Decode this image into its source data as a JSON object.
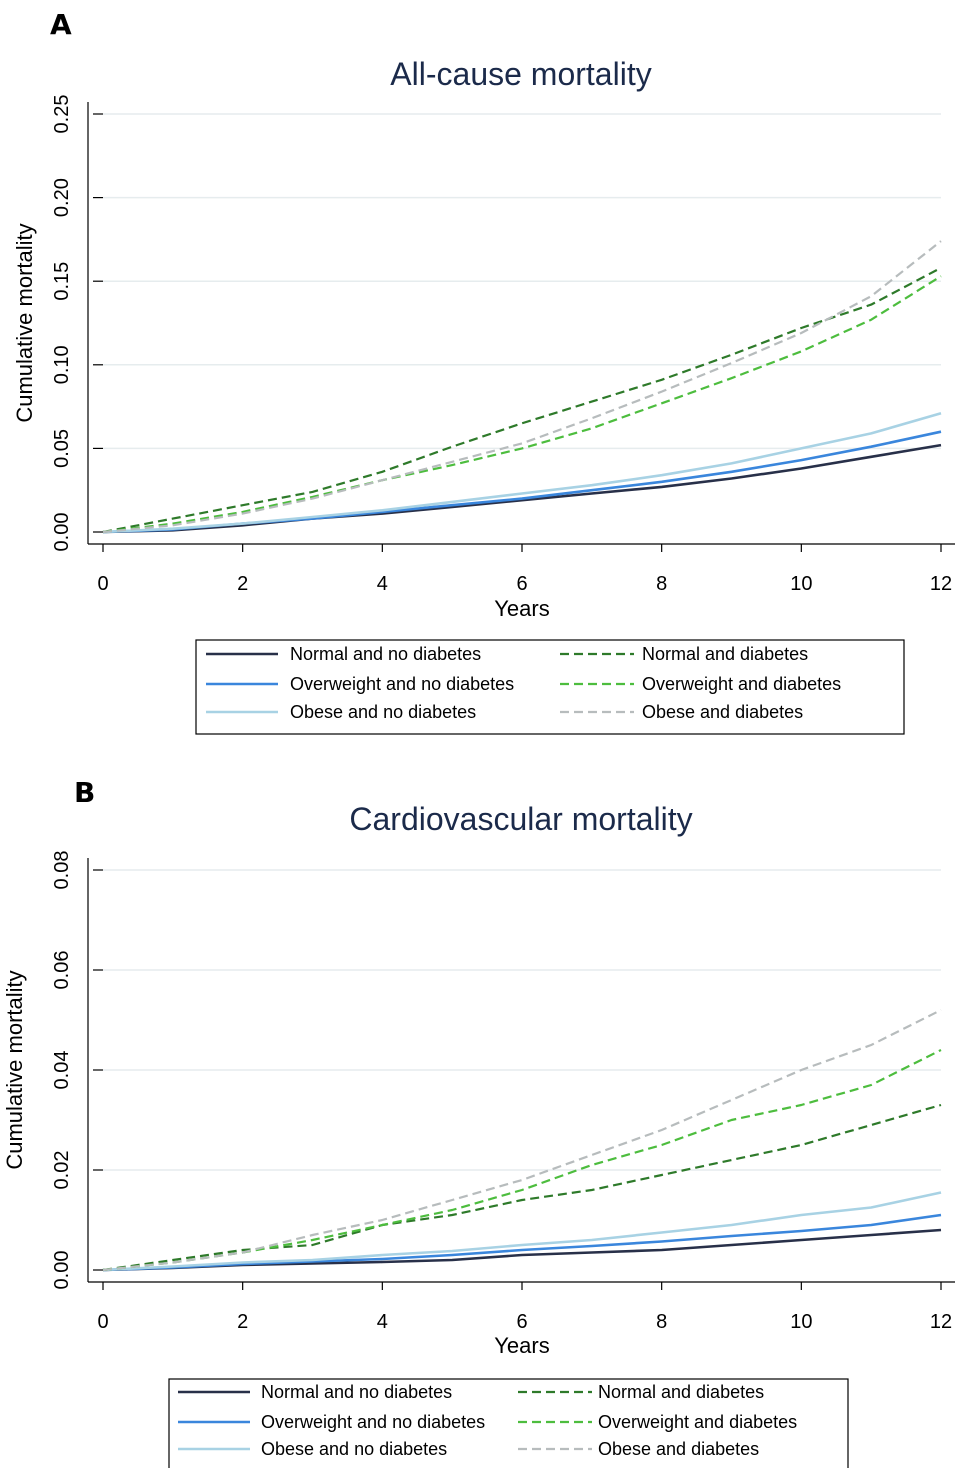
{
  "colors": {
    "normal_no_dm": "#283049",
    "overweight_no_dm": "#3a86dc",
    "obese_no_dm": "#a8d2e4",
    "normal_dm": "#2e7a2a",
    "overweight_dm": "#4dbd3e",
    "obese_dm": "#b7bcbd",
    "grid": "#e6ecee",
    "title": "#1b2a4a"
  },
  "panels": [
    {
      "letter": "A",
      "chart_data": {
        "type": "line",
        "title": "All-cause mortality",
        "xlabel": "Years",
        "ylabel": "Cumulative mortality",
        "xlim": [
          0,
          12
        ],
        "ylim": [
          0,
          0.25
        ],
        "xticks": [
          "0",
          "2",
          "4",
          "6",
          "8",
          "10",
          "12"
        ],
        "yticks": [
          "0.00",
          "0.05",
          "0.10",
          "0.15",
          "0.20",
          "0.25"
        ],
        "grid": true,
        "legend_position": "bottom",
        "x": [
          0,
          1,
          2,
          3,
          4,
          5,
          6,
          7,
          8,
          9,
          10,
          11,
          12
        ],
        "series": [
          {
            "name": "Normal and no diabetes",
            "style": "solid",
            "color_key": "normal_no_dm",
            "values": [
              0,
              0.001,
              0.004,
              0.008,
              0.011,
              0.015,
              0.019,
              0.023,
              0.027,
              0.032,
              0.038,
              0.045,
              0.052
            ]
          },
          {
            "name": "Overweight and no diabetes",
            "style": "solid",
            "color_key": "overweight_no_dm",
            "values": [
              0,
              0.0015,
              0.005,
              0.008,
              0.012,
              0.016,
              0.02,
              0.025,
              0.03,
              0.036,
              0.043,
              0.051,
              0.06
            ]
          },
          {
            "name": "Obese and no diabetes",
            "style": "solid",
            "color_key": "obese_no_dm",
            "values": [
              0,
              0.002,
              0.005,
              0.009,
              0.013,
              0.018,
              0.023,
              0.028,
              0.034,
              0.041,
              0.05,
              0.059,
              0.071
            ]
          },
          {
            "name": "Normal and diabetes",
            "style": "dashed",
            "color_key": "normal_dm",
            "values": [
              0,
              0.008,
              0.016,
              0.024,
              0.036,
              0.051,
              0.065,
              0.078,
              0.091,
              0.106,
              0.122,
              0.136,
              0.158
            ]
          },
          {
            "name": "Overweight and diabetes",
            "style": "dashed",
            "color_key": "overweight_dm",
            "values": [
              0,
              0.005,
              0.012,
              0.021,
              0.031,
              0.04,
              0.05,
              0.062,
              0.077,
              0.092,
              0.108,
              0.127,
              0.153
            ]
          },
          {
            "name": "Obese and diabetes",
            "style": "dashed",
            "color_key": "obese_dm",
            "values": [
              0,
              0.004,
              0.011,
              0.02,
              0.031,
              0.042,
              0.053,
              0.068,
              0.084,
              0.101,
              0.119,
              0.141,
              0.174
            ]
          }
        ]
      }
    },
    {
      "letter": "B",
      "chart_data": {
        "type": "line",
        "title": "Cardiovascular mortality",
        "xlabel": "Years",
        "ylabel": "Cumulative mortality",
        "xlim": [
          0,
          12
        ],
        "ylim": [
          0,
          0.08
        ],
        "xticks": [
          "0",
          "2",
          "4",
          "6",
          "8",
          "10",
          "12"
        ],
        "yticks": [
          "0.00",
          "0.02",
          "0.04",
          "0.06",
          "0.08"
        ],
        "grid": true,
        "legend_position": "bottom",
        "x": [
          0,
          1,
          2,
          3,
          4,
          5,
          6,
          7,
          8,
          9,
          10,
          11,
          12
        ],
        "series": [
          {
            "name": "Normal and no diabetes",
            "style": "solid",
            "color_key": "normal_no_dm",
            "values": [
              0,
              0.0004,
              0.001,
              0.0013,
              0.0016,
              0.002,
              0.003,
              0.0035,
              0.004,
              0.005,
              0.006,
              0.007,
              0.008
            ]
          },
          {
            "name": "Overweight and no diabetes",
            "style": "solid",
            "color_key": "overweight_no_dm",
            "values": [
              0,
              0.0005,
              0.0012,
              0.0017,
              0.0022,
              0.003,
              0.004,
              0.0048,
              0.0057,
              0.0068,
              0.0078,
              0.009,
              0.011
            ]
          },
          {
            "name": "Obese and no diabetes",
            "style": "solid",
            "color_key": "obese_no_dm",
            "values": [
              0,
              0.0007,
              0.0015,
              0.002,
              0.003,
              0.0038,
              0.005,
              0.006,
              0.0075,
              0.009,
              0.011,
              0.0125,
              0.0155
            ]
          },
          {
            "name": "Normal and diabetes",
            "style": "dashed",
            "color_key": "normal_dm",
            "values": [
              0,
              0.002,
              0.004,
              0.005,
              0.009,
              0.011,
              0.014,
              0.016,
              0.019,
              0.022,
              0.025,
              0.029,
              0.033
            ]
          },
          {
            "name": "Overweight and diabetes",
            "style": "dashed",
            "color_key": "overweight_dm",
            "values": [
              0,
              0.0015,
              0.0035,
              0.006,
              0.009,
              0.012,
              0.016,
              0.021,
              0.025,
              0.03,
              0.033,
              0.037,
              0.044
            ]
          },
          {
            "name": "Obese and diabetes",
            "style": "dashed",
            "color_key": "obese_dm",
            "values": [
              0,
              0.0015,
              0.0035,
              0.007,
              0.01,
              0.014,
              0.018,
              0.023,
              0.028,
              0.034,
              0.04,
              0.045,
              0.052
            ]
          }
        ]
      }
    }
  ]
}
